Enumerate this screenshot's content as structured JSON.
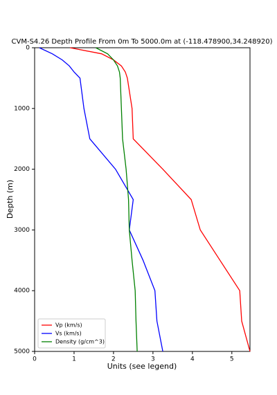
{
  "chart_data": {
    "type": "line",
    "title": "CVM-S4.26 Depth Profile From 0m To 5000.0m at (-118.478900,34.248920)",
    "xlabel": "Units (see legend)",
    "ylabel": "Depth (m)",
    "depths": [
      0,
      100,
      200,
      300,
      400,
      500,
      1000,
      1500,
      2000,
      2500,
      3000,
      3500,
      4000,
      4500,
      5000
    ],
    "series": [
      {
        "name": "Vp (km/s)",
        "color": "#ff0000",
        "values": [
          0.9,
          1.7,
          2.0,
          2.2,
          2.3,
          2.35,
          2.47,
          2.5,
          3.25,
          3.97,
          4.2,
          4.7,
          5.2,
          5.25,
          5.46
        ]
      },
      {
        "name": "Vs (km/s)",
        "color": "#0000ff",
        "values": [
          0.12,
          0.45,
          0.7,
          0.88,
          1.0,
          1.15,
          1.25,
          1.4,
          2.05,
          2.5,
          2.4,
          2.75,
          3.05,
          3.1,
          3.25
        ]
      },
      {
        "name": "Density (g/cm^3)",
        "color": "#008000",
        "values": [
          1.55,
          1.85,
          2.0,
          2.1,
          2.15,
          2.17,
          2.2,
          2.23,
          2.32,
          2.38,
          2.4,
          2.47,
          2.55,
          2.57,
          2.6
        ]
      }
    ],
    "xlim": [
      0,
      5.46
    ],
    "xticks": [
      0,
      1,
      2,
      3,
      4,
      5
    ],
    "ylim": [
      0,
      5000
    ],
    "yticks": [
      0,
      1000,
      2000,
      3000,
      4000,
      5000
    ],
    "y_inverted": true,
    "legend": "lower left"
  }
}
